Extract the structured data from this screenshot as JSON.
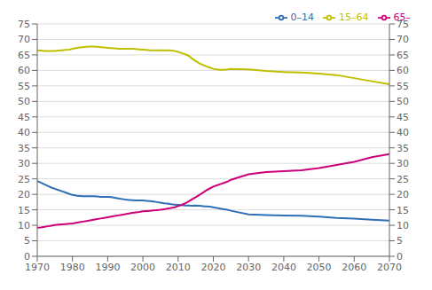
{
  "chart_data": {
    "type": "line",
    "x": [
      1970,
      1971,
      1972,
      1973,
      1974,
      1975,
      1976,
      1977,
      1978,
      1979,
      1980,
      1981,
      1982,
      1983,
      1984,
      1985,
      1986,
      1987,
      1988,
      1989,
      1990,
      1991,
      1992,
      1993,
      1994,
      1995,
      1996,
      1997,
      1998,
      1999,
      2000,
      2001,
      2002,
      2003,
      2004,
      2005,
      2006,
      2007,
      2008,
      2009,
      2010,
      2011,
      2012,
      2013,
      2014,
      2015,
      2016,
      2017,
      2018,
      2019,
      2020,
      2021,
      2022,
      2023,
      2024,
      2025,
      2030,
      2035,
      2040,
      2045,
      2050,
      2055,
      2060,
      2065,
      2070
    ],
    "series": [
      {
        "name": "0–14",
        "color": "#2F6DB5",
        "values": [
          24.3,
          23.8,
          23.2,
          22.7,
          22.2,
          21.8,
          21.4,
          21.0,
          20.6,
          20.2,
          19.8,
          19.6,
          19.5,
          19.4,
          19.4,
          19.4,
          19.4,
          19.3,
          19.2,
          19.2,
          19.2,
          19.1,
          18.9,
          18.7,
          18.5,
          18.3,
          18.2,
          18.1,
          18.0,
          18.0,
          18.0,
          17.9,
          17.8,
          17.7,
          17.5,
          17.3,
          17.1,
          17.0,
          16.8,
          16.7,
          16.6,
          16.5,
          16.4,
          16.4,
          16.3,
          16.4,
          16.3,
          16.2,
          16.1,
          16.0,
          15.8,
          15.6,
          15.4,
          15.2,
          15.0,
          14.7,
          13.5,
          13.3,
          13.2,
          13.1,
          12.8,
          12.4,
          12.2,
          11.8,
          11.5
        ]
      },
      {
        "name": "15–64",
        "color": "#BFBF00",
        "values": [
          66.5,
          66.4,
          66.3,
          66.3,
          66.3,
          66.3,
          66.4,
          66.5,
          66.6,
          66.7,
          67.0,
          67.2,
          67.4,
          67.5,
          67.6,
          67.7,
          67.7,
          67.6,
          67.5,
          67.4,
          67.3,
          67.2,
          67.1,
          67.0,
          67.0,
          67.0,
          67.0,
          67.0,
          66.9,
          66.8,
          66.7,
          66.6,
          66.5,
          66.5,
          66.5,
          66.5,
          66.5,
          66.5,
          66.4,
          66.3,
          66.0,
          65.6,
          65.2,
          64.7,
          63.8,
          63.0,
          62.3,
          61.8,
          61.3,
          60.9,
          60.5,
          60.3,
          60.2,
          60.2,
          60.3,
          60.5,
          60.3,
          59.8,
          59.5,
          59.3,
          59.0,
          58.5,
          57.5,
          56.5,
          55.5
        ]
      },
      {
        "name": "65–",
        "color": "#CC007A",
        "values": [
          9.2,
          9.3,
          9.5,
          9.7,
          9.9,
          10.1,
          10.2,
          10.3,
          10.4,
          10.5,
          10.6,
          10.8,
          11.0,
          11.2,
          11.4,
          11.6,
          11.8,
          12.0,
          12.2,
          12.4,
          12.6,
          12.8,
          13.0,
          13.2,
          13.4,
          13.6,
          13.8,
          14.0,
          14.2,
          14.3,
          14.5,
          14.6,
          14.7,
          14.8,
          14.9,
          15.0,
          15.2,
          15.4,
          15.6,
          15.8,
          16.2,
          16.6,
          17.1,
          17.7,
          18.4,
          19.1,
          19.8,
          20.5,
          21.3,
          21.9,
          22.5,
          22.9,
          23.3,
          23.7,
          24.1,
          24.7,
          26.5,
          27.2,
          27.5,
          27.8,
          28.5,
          29.5,
          30.5,
          32.0,
          33.0
        ]
      }
    ],
    "xlim": [
      1970,
      2070
    ],
    "xticks": [
      1970,
      1980,
      1990,
      2000,
      2010,
      2020,
      2030,
      2040,
      2050,
      2060,
      2070
    ],
    "ylim": [
      0,
      75
    ],
    "yticks": [
      0,
      5,
      10,
      15,
      20,
      25,
      30,
      35,
      40,
      45,
      50,
      55,
      60,
      65,
      70,
      75
    ],
    "y2lim": [
      0,
      75
    ],
    "y2ticks": [
      0,
      5,
      10,
      15,
      20,
      25,
      30,
      35,
      40,
      45,
      50,
      55,
      60,
      65,
      70,
      75
    ],
    "grid": true,
    "legend": "upper right"
  }
}
